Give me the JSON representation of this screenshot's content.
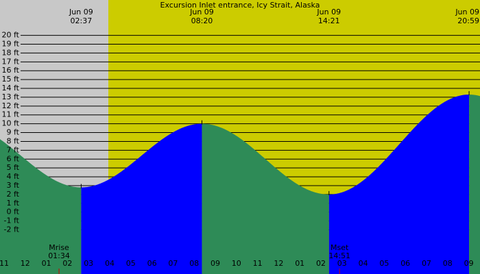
{
  "chart_data": {
    "type": "tide",
    "title": "Excursion Inlet entrance, Icy Strait, Alaska",
    "extremes": [
      {
        "date": "Jun 09",
        "time": "02:37",
        "height": 2.8
      },
      {
        "date": "Jun 09",
        "time": "08:20",
        "height": 10.0
      },
      {
        "date": "Jun 09",
        "time": "14:21",
        "height": 2.0
      },
      {
        "date": "Jun 09",
        "time": "20:59",
        "height": 13.3
      }
    ],
    "moon": [
      {
        "label": "Mrise",
        "time": "01:34"
      },
      {
        "label": "Mset",
        "time": "14:51"
      }
    ],
    "hours": [
      "11",
      "12",
      "01",
      "02",
      "03",
      "04",
      "05",
      "06",
      "07",
      "08",
      "09",
      "10",
      "11",
      "12",
      "01",
      "02",
      "03",
      "04",
      "05",
      "06",
      "07",
      "08",
      "09"
    ],
    "ylim": [
      -7,
      24
    ],
    "yticks": [
      {
        "value": 20,
        "label": "20 ft"
      },
      {
        "value": 19,
        "label": "19 ft"
      },
      {
        "value": 18,
        "label": "18 ft"
      },
      {
        "value": 17,
        "label": "17 ft"
      },
      {
        "value": 16,
        "label": "16 ft"
      },
      {
        "value": 15,
        "label": "15 ft"
      },
      {
        "value": 14,
        "label": "14 ft"
      },
      {
        "value": 13,
        "label": "13 ft"
      },
      {
        "value": 12,
        "label": "12 ft"
      },
      {
        "value": 11,
        "label": "11 ft"
      },
      {
        "value": 10,
        "label": "10 ft"
      },
      {
        "value": 9,
        "label": "9 ft"
      },
      {
        "value": 8,
        "label": "8 ft"
      },
      {
        "value": 7,
        "label": "7 ft"
      },
      {
        "value": 6,
        "label": "6 ft"
      },
      {
        "value": 5,
        "label": "5 ft"
      },
      {
        "value": 4,
        "label": "4 ft"
      },
      {
        "value": 3,
        "label": "3 ft"
      },
      {
        "value": 2,
        "label": "2 ft"
      },
      {
        "value": 1,
        "label": "1 ft"
      },
      {
        "value": 0,
        "label": "0 ft"
      },
      {
        "value": -1,
        "label": "-1 ft"
      },
      {
        "value": -2,
        "label": "-2 ft"
      }
    ],
    "colors": {
      "night": "#c8c8c8",
      "day": "#cccc00",
      "falling": "#2e8b57",
      "rising": "#0000ff",
      "grid": "#000000",
      "moon_tick": "#cc0000"
    }
  }
}
